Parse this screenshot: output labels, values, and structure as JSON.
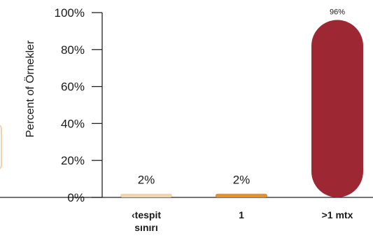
{
  "chart_data": {
    "type": "bar",
    "ylabel": "Percent of Örnekler",
    "ylim": [
      0,
      100
    ],
    "yticks": [
      "0%",
      "20%",
      "40%",
      "60%",
      "80%",
      "100%"
    ],
    "categories": [
      [
        "‹tespit",
        "sınırı"
      ],
      [
        "1"
      ],
      [
        ">1 mtx"
      ]
    ],
    "values": [
      2,
      2,
      96
    ],
    "data_labels": [
      "2%",
      "2%",
      "96%"
    ],
    "colors": [
      "#f1d4a9",
      "#e8902a",
      "#9e2734"
    ]
  }
}
